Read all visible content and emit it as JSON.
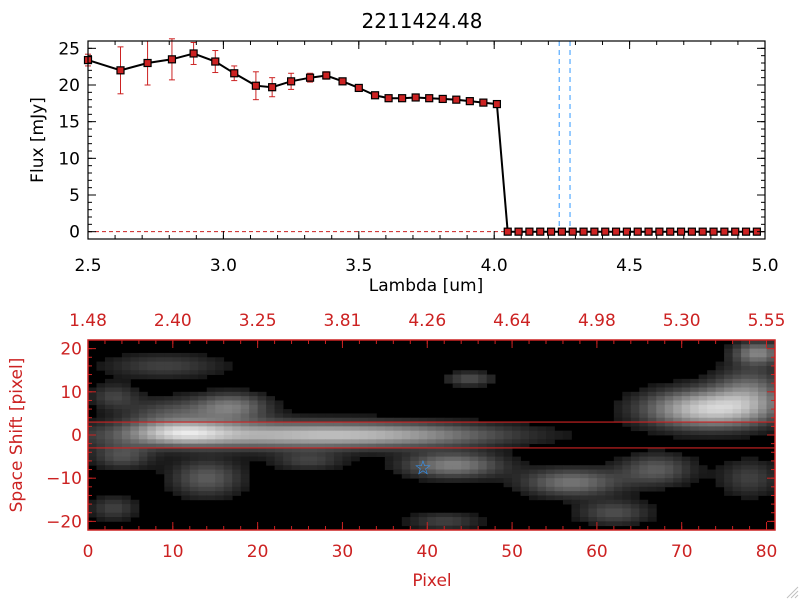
{
  "title": "2211424.48",
  "colors": {
    "red": "#cc2222",
    "line": "#000000",
    "err": "#cc2222",
    "marker_edge": "#000000",
    "marker_fill": "#cc2222",
    "vline": "#3399ff",
    "star": "#3399ff"
  },
  "chart_data": [
    {
      "type": "line",
      "title": "2211424.48",
      "xlabel": "Lambda [um]",
      "ylabel": "Flux [mJy]",
      "xlim": [
        2.5,
        5.0
      ],
      "ylim": [
        -1,
        26
      ],
      "x_ticks": [
        2.5,
        3.0,
        3.5,
        4.0,
        4.5,
        5.0
      ],
      "x_tick_labels": [
        "2.5",
        "3.0",
        "3.5",
        "4.0",
        "4.5",
        "5.0"
      ],
      "y_ticks": [
        0,
        5,
        10,
        15,
        20,
        25
      ],
      "y_tick_labels": [
        "0",
        "5",
        "10",
        "15",
        "20",
        "25"
      ],
      "series": [
        {
          "name": "flux",
          "x": [
            2.5,
            2.62,
            2.72,
            2.81,
            2.89,
            2.97,
            3.04,
            3.12,
            3.18,
            3.25,
            3.32,
            3.38,
            3.44,
            3.5,
            3.56,
            3.61,
            3.66,
            3.71,
            3.76,
            3.81,
            3.86,
            3.91,
            3.96,
            4.01,
            4.05,
            4.09,
            4.13,
            4.17,
            4.21,
            4.25,
            4.29,
            4.33,
            4.37,
            4.41,
            4.45,
            4.49,
            4.53,
            4.57,
            4.61,
            4.65,
            4.69,
            4.73,
            4.77,
            4.81,
            4.85,
            4.89,
            4.93,
            4.97
          ],
          "y": [
            23.4,
            22.0,
            23.0,
            23.5,
            24.3,
            23.2,
            21.6,
            19.9,
            19.7,
            20.5,
            21.0,
            21.3,
            20.5,
            19.6,
            18.6,
            18.2,
            18.2,
            18.3,
            18.2,
            18.1,
            18.0,
            17.8,
            17.6,
            17.4,
            0.0,
            0.0,
            0.0,
            0.0,
            0.0,
            0.0,
            0.0,
            0.0,
            0.0,
            0.0,
            0.0,
            0.0,
            0.0,
            0.0,
            0.0,
            0.0,
            0.0,
            0.0,
            0.0,
            0.0,
            0.0,
            0.0,
            0.0,
            0.0
          ],
          "yerr": [
            0.8,
            3.2,
            3.0,
            2.8,
            1.5,
            1.5,
            1.0,
            1.9,
            1.3,
            1.1,
            0.6,
            0.5,
            0.4,
            0.3,
            0.3,
            0.2,
            0.2,
            0.2,
            0.2,
            0.2,
            0.2,
            0.2,
            0.2,
            0.2,
            0,
            0,
            0,
            0,
            0,
            0,
            0,
            0,
            0,
            0,
            0,
            0,
            0,
            0,
            0,
            0,
            0,
            0,
            0,
            0,
            0,
            0,
            0,
            0
          ]
        }
      ],
      "vertical_lines": [
        4.24,
        4.28
      ],
      "zero_line": 0
    },
    {
      "type": "heatmap",
      "xlabel": "Pixel",
      "ylabel": "Space Shift [pixel]",
      "xlim": [
        0,
        81
      ],
      "ylim": [
        -22,
        22
      ],
      "x_ticks": [
        0,
        10,
        20,
        30,
        40,
        50,
        60,
        70,
        80
      ],
      "x_tick_labels": [
        "0",
        "10",
        "20",
        "30",
        "40",
        "50",
        "60",
        "70",
        "80"
      ],
      "y_ticks": [
        -20,
        -10,
        0,
        10,
        20
      ],
      "y_tick_labels": [
        "−20",
        "−10",
        "0",
        "10",
        "20"
      ],
      "top_axis_ticks": [
        0,
        10,
        20,
        30,
        40,
        50,
        60,
        70,
        80
      ],
      "top_axis_labels": [
        "1.48",
        "2.40",
        "3.25",
        "3.81",
        "4.26",
        "4.64",
        "4.98",
        "5.30",
        "5.55"
      ],
      "hlines": [
        3,
        -3
      ],
      "star": {
        "x": 39.5,
        "y": -7.5,
        "symbol": "☆"
      },
      "blobs": [
        {
          "x": 22,
          "y": 0,
          "sx": 14,
          "sy": 2.2,
          "amp": 0.55
        },
        {
          "x": 11,
          "y": 0.5,
          "sx": 4,
          "sy": 1.8,
          "amp": 0.45
        },
        {
          "x": 36,
          "y": 0,
          "sx": 10,
          "sy": 1.8,
          "amp": 0.3
        },
        {
          "x": 17,
          "y": 6.5,
          "sx": 3,
          "sy": 2.2,
          "amp": 0.4
        },
        {
          "x": 10,
          "y": 5,
          "sx": 4,
          "sy": 2.5,
          "amp": 0.25
        },
        {
          "x": 9,
          "y": 16,
          "sx": 5,
          "sy": 2,
          "amp": 0.2
        },
        {
          "x": 73,
          "y": 6,
          "sx": 5,
          "sy": 3,
          "amp": 0.75
        },
        {
          "x": 78,
          "y": 10,
          "sx": 3,
          "sy": 4,
          "amp": 0.35
        },
        {
          "x": 79,
          "y": 19,
          "sx": 2,
          "sy": 1.8,
          "amp": 0.45
        },
        {
          "x": 43,
          "y": -7,
          "sx": 4,
          "sy": 2,
          "amp": 0.45
        },
        {
          "x": 57,
          "y": -11,
          "sx": 4,
          "sy": 2.2,
          "amp": 0.4
        },
        {
          "x": 14,
          "y": -10,
          "sx": 3,
          "sy": 3,
          "amp": 0.3
        },
        {
          "x": 67,
          "y": -8,
          "sx": 3,
          "sy": 2.5,
          "amp": 0.3
        },
        {
          "x": 62,
          "y": -18,
          "sx": 3,
          "sy": 2,
          "amp": 0.25
        },
        {
          "x": 42,
          "y": -20,
          "sx": 3,
          "sy": 1.5,
          "amp": 0.2
        },
        {
          "x": 4,
          "y": -5,
          "sx": 2.5,
          "sy": 2,
          "amp": 0.25
        },
        {
          "x": 3,
          "y": -17,
          "sx": 2,
          "sy": 2,
          "amp": 0.2
        },
        {
          "x": 26,
          "y": -6,
          "sx": 3,
          "sy": 1.5,
          "amp": 0.2
        },
        {
          "x": 45,
          "y": 13,
          "sx": 2,
          "sy": 1.2,
          "amp": 0.25
        },
        {
          "x": 3,
          "y": 9,
          "sx": 2,
          "sy": 2,
          "amp": 0.2
        },
        {
          "x": 78,
          "y": -10,
          "sx": 2.5,
          "sy": 3,
          "amp": 0.2
        }
      ]
    }
  ]
}
